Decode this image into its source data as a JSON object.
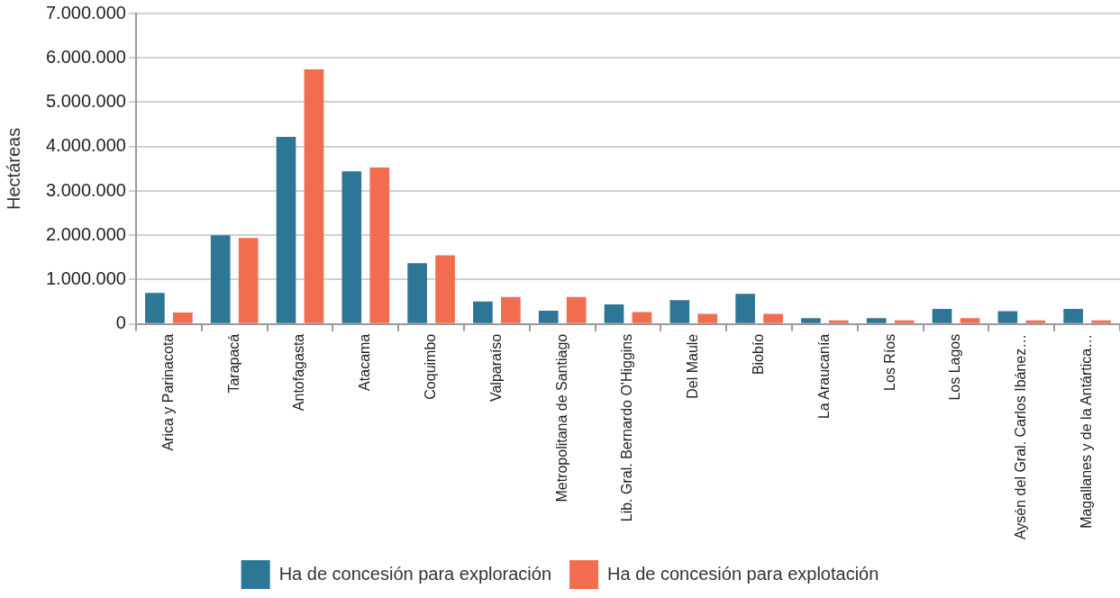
{
  "chart_data": {
    "type": "bar",
    "ylabel": "Hectáreas",
    "categories": [
      "Arica y Parinacota",
      "Tarapacá",
      "Antofagasta",
      "Atacama",
      "Coquimbo",
      "Valparaíso",
      "Metropolitana de Santiago",
      "Lib. Gral. Bernardo O'Higgins",
      "Del Maule",
      "Biobío",
      "La Araucanía",
      "Los Ríos",
      "Los Lagos",
      "Aysén del Gral. Carlos Ibánez…",
      "Magallanes y de la Antártica…"
    ],
    "series": [
      {
        "name": "Ha de concesión para exploración",
        "color": "#2e7696",
        "values": [
          700000,
          2000000,
          4220000,
          3440000,
          1370000,
          510000,
          300000,
          440000,
          540000,
          680000,
          130000,
          130000,
          340000,
          290000,
          340000
        ]
      },
      {
        "name": "Ha de concesión para explotación",
        "color": "#f26d4f",
        "values": [
          260000,
          1940000,
          5740000,
          3530000,
          1550000,
          610000,
          610000,
          270000,
          230000,
          230000,
          80000,
          80000,
          130000,
          80000,
          80000
        ]
      }
    ],
    "ylim": [
      0,
      7000000
    ],
    "yticks": [
      {
        "value": 0,
        "label": "0"
      },
      {
        "value": 1000000,
        "label": "1.000.000"
      },
      {
        "value": 2000000,
        "label": "2.000.000"
      },
      {
        "value": 3000000,
        "label": "3.000.000"
      },
      {
        "value": 4000000,
        "label": "4.000.000"
      },
      {
        "value": 5000000,
        "label": "5.000.000"
      },
      {
        "value": 6000000,
        "label": "6.000.000"
      },
      {
        "value": 7000000,
        "label": "7.000.000"
      }
    ],
    "grid": "y",
    "legend": "bottom"
  }
}
